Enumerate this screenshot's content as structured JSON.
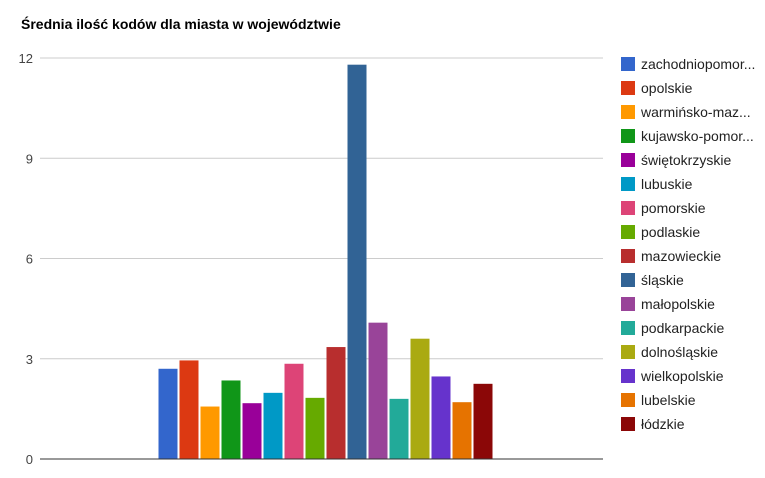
{
  "chart_data": {
    "type": "bar",
    "title": "Średnia ilość kodów dla miasta w województwie",
    "xlabel": "",
    "ylabel": "",
    "ylim": [
      0,
      12
    ],
    "yticks": [
      "0",
      "3",
      "6",
      "9",
      "12"
    ],
    "grid": true,
    "legend_position": "right",
    "categories": [
      ""
    ],
    "series": [
      {
        "name": "zachodniopomor...",
        "values": [
          2.7
        ],
        "color": "#3366cc"
      },
      {
        "name": "opolskie",
        "values": [
          2.95
        ],
        "color": "#dc3912"
      },
      {
        "name": "warmińsko-maz...",
        "values": [
          1.57
        ],
        "color": "#ff9900"
      },
      {
        "name": "kujawsko-pomor...",
        "values": [
          2.35
        ],
        "color": "#109618"
      },
      {
        "name": "świętokrzyskie",
        "values": [
          1.67
        ],
        "color": "#990099"
      },
      {
        "name": "lubuskie",
        "values": [
          1.98
        ],
        "color": "#0099c6"
      },
      {
        "name": "pomorskie",
        "values": [
          2.85
        ],
        "color": "#dd4477"
      },
      {
        "name": "podlaskie",
        "values": [
          1.83
        ],
        "color": "#66aa00"
      },
      {
        "name": "mazowieckie",
        "values": [
          3.35
        ],
        "color": "#b82e2e"
      },
      {
        "name": "śląskie",
        "values": [
          11.8
        ],
        "color": "#316395"
      },
      {
        "name": "małopolskie",
        "values": [
          4.08
        ],
        "color": "#994499"
      },
      {
        "name": "podkarpackie",
        "values": [
          1.8
        ],
        "color": "#22aa99"
      },
      {
        "name": "dolnośląskie",
        "values": [
          3.6
        ],
        "color": "#aaaa11"
      },
      {
        "name": "wielkopolskie",
        "values": [
          2.47
        ],
        "color": "#6633cc"
      },
      {
        "name": "lubelskie",
        "values": [
          1.7
        ],
        "color": "#e67300"
      },
      {
        "name": "łódzkie",
        "values": [
          2.25
        ],
        "color": "#8b0707"
      }
    ]
  }
}
